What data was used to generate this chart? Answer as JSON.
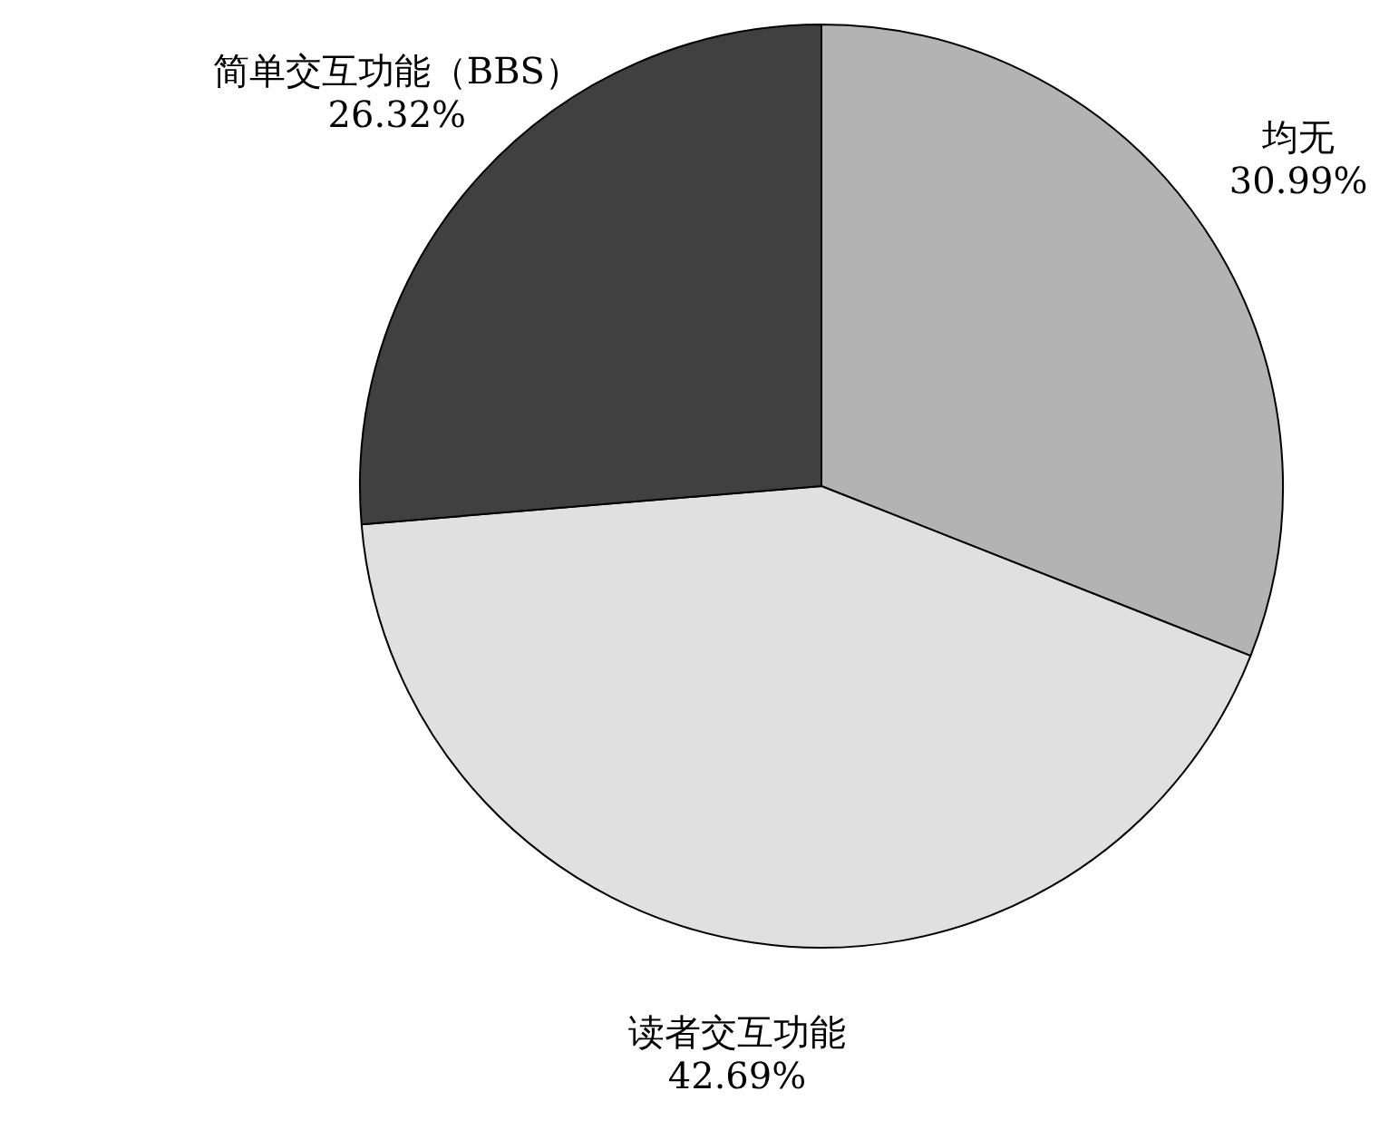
{
  "chart_data": {
    "type": "pie",
    "categories": [
      "均无",
      "读者交互功能",
      "简单交互功能（BBS）"
    ],
    "values": [
      30.99,
      42.69,
      26.32
    ],
    "value_labels": [
      "30.99%",
      "42.69%",
      "26.32%"
    ],
    "colors": [
      "#b3b3b3",
      "#e0e0e0",
      "#404040"
    ],
    "legend": false
  }
}
